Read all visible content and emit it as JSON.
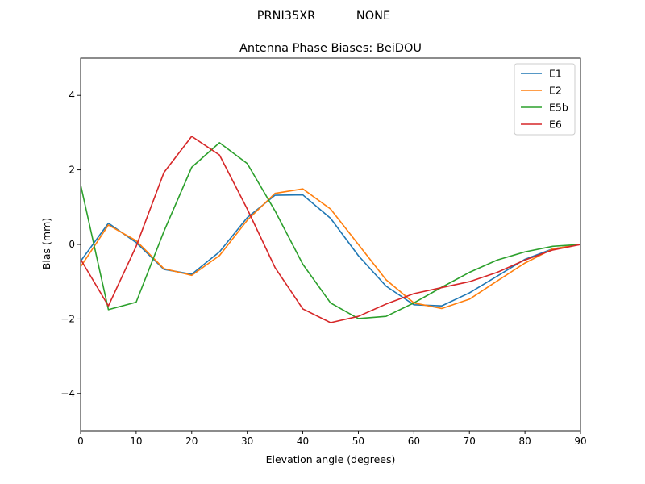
{
  "suptitle_left": "PRNI35XR",
  "suptitle_right": "NONE",
  "chart_data": {
    "type": "line",
    "title": "Antenna Phase Biases: BeiDOU",
    "xlabel": "Elevation angle (degrees)",
    "ylabel": "Bias (mm)",
    "xlim": [
      0,
      90
    ],
    "ylim": [
      -5,
      5
    ],
    "xticks": [
      0,
      10,
      20,
      30,
      40,
      50,
      60,
      70,
      80,
      90
    ],
    "yticks": [
      -4,
      -2,
      0,
      2,
      4
    ],
    "x": [
      0,
      5,
      10,
      15,
      20,
      25,
      30,
      35,
      40,
      45,
      50,
      55,
      60,
      65,
      70,
      75,
      80,
      85,
      90
    ],
    "series": [
      {
        "name": "E1",
        "color": "#1f77b4",
        "values": [
          -0.45,
          0.57,
          0.05,
          -0.67,
          -0.8,
          -0.2,
          0.72,
          1.32,
          1.33,
          0.7,
          -0.3,
          -1.12,
          -1.62,
          -1.65,
          -1.3,
          -0.85,
          -0.4,
          -0.12,
          0.0
        ]
      },
      {
        "name": "E2",
        "color": "#ff7f0e",
        "values": [
          -0.6,
          0.52,
          0.1,
          -0.65,
          -0.83,
          -0.3,
          0.65,
          1.37,
          1.49,
          0.95,
          0.0,
          -0.95,
          -1.57,
          -1.72,
          -1.47,
          -0.98,
          -0.5,
          -0.12,
          0.0
        ]
      },
      {
        "name": "E5b",
        "color": "#2ca02c",
        "values": [
          1.6,
          -1.75,
          -1.55,
          0.35,
          2.07,
          2.73,
          2.17,
          0.9,
          -0.53,
          -1.57,
          -1.99,
          -1.93,
          -1.57,
          -1.15,
          -0.75,
          -0.42,
          -0.2,
          -0.05,
          0.0
        ]
      },
      {
        "name": "E6",
        "color": "#d62728",
        "values": [
          -0.4,
          -1.65,
          -0.05,
          1.93,
          2.9,
          2.4,
          0.95,
          -0.62,
          -1.73,
          -2.1,
          -1.93,
          -1.6,
          -1.32,
          -1.16,
          -1.0,
          -0.75,
          -0.42,
          -0.15,
          0.0
        ]
      }
    ],
    "legend": "top-right",
    "grid": false
  }
}
